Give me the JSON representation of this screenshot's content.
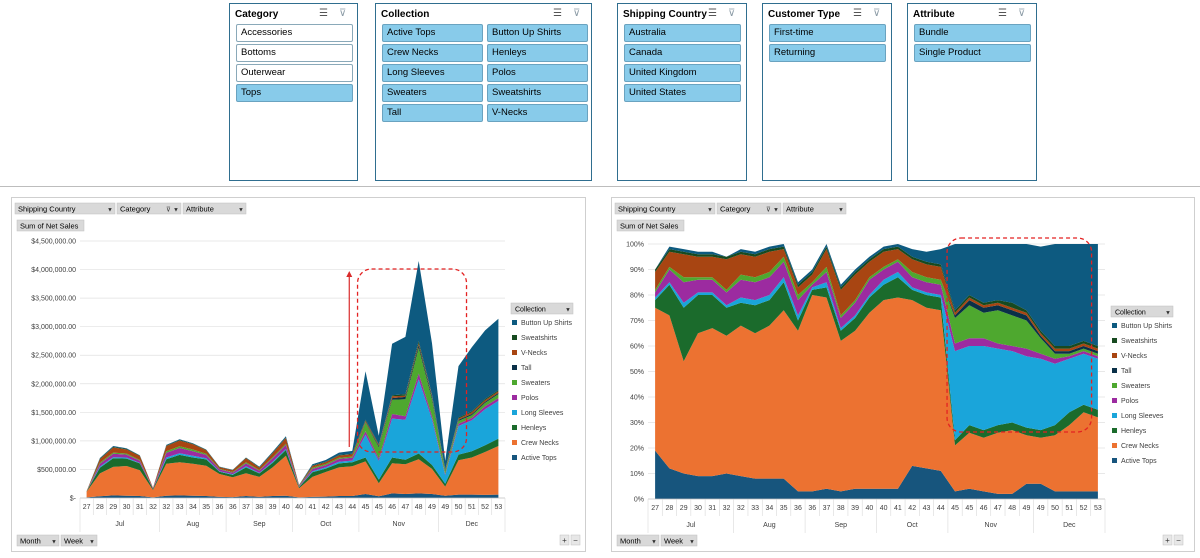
{
  "slicers": [
    {
      "title": "Category",
      "items": [
        {
          "label": "Accessories",
          "selected": false
        },
        {
          "label": "Bottoms",
          "selected": false
        },
        {
          "label": "Outerwear",
          "selected": false
        },
        {
          "label": "Tops",
          "selected": true
        }
      ]
    },
    {
      "title": "Collection",
      "items": [
        {
          "label": "Active Tops",
          "selected": true
        },
        {
          "label": "Button Up Shirts",
          "selected": true
        },
        {
          "label": "Crew Necks",
          "selected": true
        },
        {
          "label": "Henleys",
          "selected": true
        },
        {
          "label": "Long Sleeves",
          "selected": true
        },
        {
          "label": "Polos",
          "selected": true
        },
        {
          "label": "Sweaters",
          "selected": true
        },
        {
          "label": "Sweatshirts",
          "selected": true
        },
        {
          "label": "Tall",
          "selected": true
        },
        {
          "label": "V-Necks",
          "selected": true
        }
      ]
    },
    {
      "title": "Shipping Country",
      "items": [
        {
          "label": "Australia",
          "selected": true
        },
        {
          "label": "Canada",
          "selected": true
        },
        {
          "label": "United Kingdom",
          "selected": true
        },
        {
          "label": "United States",
          "selected": true
        }
      ]
    },
    {
      "title": "Customer Type",
      "items": [
        {
          "label": "First-time",
          "selected": true
        },
        {
          "label": "Returning",
          "selected": true
        }
      ]
    },
    {
      "title": "Attribute",
      "items": [
        {
          "label": "Bundle",
          "selected": true
        },
        {
          "label": "Single Product",
          "selected": true
        }
      ]
    }
  ],
  "pivot": {
    "filters": [
      "Shipping Country",
      "Category",
      "Attribute"
    ],
    "value_field": "Sum of Net Sales",
    "legend_title": "Collection",
    "row_buttons": [
      "Month",
      "Week"
    ],
    "zoom_in": "+",
    "zoom_out": "−"
  },
  "colors": {
    "Active Tops": "#17557d",
    "Crew Necks": "#ec7231",
    "Henleys": "#1b6b2c",
    "Long Sleeves": "#1aa5da",
    "Polos": "#9c2ba0",
    "Sweaters": "#4ea82f",
    "Tall": "#0a3048",
    "V-Necks": "#a84512",
    "Sweatshirts": "#174a20",
    "Button Up Shirts": "#0d5a80"
  },
  "chart_data": [
    {
      "type": "area",
      "stacked": true,
      "title": "",
      "ylabel": "Sum of Net Sales",
      "ylim": [
        0,
        4500000
      ],
      "yticks": [
        0,
        500000,
        1000000,
        1500000,
        2000000,
        2500000,
        3000000,
        3500000,
        4000000,
        4500000
      ],
      "ytick_labels": [
        "$-",
        "$500,000.00",
        "$1,000,000.00",
        "$1,500,000.00",
        "$2,000,000.00",
        "$2,500,000.00",
        "$3,000,000.00",
        "$3,500,000.00",
        "$4,000,000.00",
        "$4,500,000.00"
      ],
      "x": [
        "27",
        "28",
        "29",
        "30",
        "31",
        "32",
        "32",
        "33",
        "34",
        "35",
        "36",
        "36",
        "37",
        "38",
        "39",
        "40",
        "40",
        "41",
        "42",
        "43",
        "44",
        "45",
        "45",
        "46",
        "47",
        "48",
        "49",
        "49",
        "50",
        "51",
        "52",
        "53"
      ],
      "months": [
        {
          "label": "Jul",
          "span": 6
        },
        {
          "label": "Aug",
          "span": 5
        },
        {
          "label": "Sep",
          "span": 5
        },
        {
          "label": "Oct",
          "span": 5
        },
        {
          "label": "Nov",
          "span": 6
        },
        {
          "label": "Dec",
          "span": 5
        }
      ],
      "legend": [
        "Button Up Shirts",
        "Sweatshirts",
        "V-Necks",
        "Tall",
        "Sweaters",
        "Polos",
        "Long Sleeves",
        "Henleys",
        "Crew Necks",
        "Active Tops"
      ],
      "series": [
        {
          "name": "Active Tops",
          "values": [
            10000,
            30000,
            45000,
            40000,
            35000,
            10000,
            40000,
            45000,
            40000,
            35000,
            20000,
            15000,
            35000,
            20000,
            35000,
            40000,
            10000,
            20000,
            25000,
            35000,
            35000,
            70000,
            30000,
            80000,
            70000,
            80000,
            70000,
            40000,
            60000,
            60000,
            55000,
            60000
          ]
        },
        {
          "name": "Crew Necks",
          "values": [
            100000,
            400000,
            500000,
            520000,
            450000,
            130000,
            560000,
            580000,
            560000,
            530000,
            400000,
            350000,
            400000,
            350000,
            500000,
            700000,
            160000,
            350000,
            430000,
            500000,
            520000,
            570000,
            230000,
            530000,
            520000,
            600000,
            440000,
            160000,
            600000,
            650000,
            750000,
            850000
          ]
        },
        {
          "name": "Henleys",
          "values": [
            5000,
            100000,
            150000,
            130000,
            120000,
            20000,
            80000,
            130000,
            110000,
            110000,
            40000,
            40000,
            100000,
            60000,
            80000,
            100000,
            20000,
            80000,
            60000,
            70000,
            70000,
            70000,
            60000,
            100000,
            80000,
            100000,
            70000,
            50000,
            100000,
            110000,
            120000,
            130000
          ]
        },
        {
          "name": "Long Sleeves",
          "values": [
            0,
            20000,
            20000,
            20000,
            10000,
            0,
            30000,
            30000,
            30000,
            20000,
            10000,
            10000,
            20000,
            10000,
            20000,
            20000,
            5000,
            20000,
            20000,
            30000,
            30000,
            400000,
            330000,
            680000,
            700000,
            1300000,
            800000,
            150000,
            500000,
            540000,
            630000,
            660000
          ]
        },
        {
          "name": "Polos",
          "values": [
            0,
            50000,
            60000,
            50000,
            40000,
            10000,
            80000,
            90000,
            80000,
            60000,
            30000,
            30000,
            50000,
            40000,
            60000,
            70000,
            10000,
            40000,
            40000,
            50000,
            50000,
            60000,
            40000,
            80000,
            60000,
            100000,
            50000,
            20000,
            40000,
            40000,
            50000,
            50000
          ]
        },
        {
          "name": "Sweaters",
          "values": [
            0,
            20000,
            20000,
            20000,
            10000,
            0,
            30000,
            30000,
            30000,
            20000,
            10000,
            10000,
            20000,
            10000,
            20000,
            20000,
            5000,
            20000,
            20000,
            20000,
            20000,
            150000,
            200000,
            250000,
            300000,
            450000,
            300000,
            50000,
            50000,
            50000,
            60000,
            70000
          ]
        },
        {
          "name": "Tall",
          "values": [
            0,
            0,
            0,
            0,
            0,
            0,
            0,
            0,
            0,
            0,
            0,
            0,
            0,
            0,
            0,
            0,
            0,
            0,
            0,
            0,
            0,
            10000,
            20000,
            30000,
            40000,
            50000,
            40000,
            10000,
            20000,
            20000,
            20000,
            20000
          ]
        },
        {
          "name": "V-Necks",
          "values": [
            5000,
            60000,
            90000,
            70000,
            70000,
            10000,
            90000,
            100000,
            90000,
            60000,
            30000,
            30000,
            70000,
            40000,
            70000,
            100000,
            10000,
            30000,
            30000,
            40000,
            40000,
            20000,
            20000,
            30000,
            20000,
            30000,
            20000,
            10000,
            20000,
            30000,
            30000,
            30000
          ]
        },
        {
          "name": "Sweatshirts",
          "values": [
            0,
            10000,
            10000,
            10000,
            10000,
            0,
            10000,
            10000,
            10000,
            10000,
            5000,
            5000,
            10000,
            10000,
            10000,
            10000,
            5000,
            10000,
            10000,
            10000,
            10000,
            20000,
            10000,
            20000,
            30000,
            40000,
            20000,
            10000,
            20000,
            20000,
            20000,
            20000
          ]
        },
        {
          "name": "Button Up Shirts",
          "values": [
            0,
            10000,
            15000,
            10000,
            5000,
            0,
            10000,
            15000,
            10000,
            5000,
            5000,
            5000,
            5000,
            10000,
            15000,
            20000,
            5000,
            20000,
            30000,
            40000,
            50000,
            850000,
            150000,
            900000,
            1000000,
            1400000,
            900000,
            150000,
            900000,
            1120000,
            1200000,
            1250000
          ]
        }
      ]
    },
    {
      "type": "area",
      "stacked": true,
      "percent": true,
      "title": "",
      "ylabel": "Sum of Net Sales",
      "ylim": [
        0,
        100
      ],
      "yticks": [
        0,
        10,
        20,
        30,
        40,
        50,
        60,
        70,
        80,
        90,
        100
      ],
      "ytick_labels": [
        "0%",
        "10%",
        "20%",
        "30%",
        "40%",
        "50%",
        "60%",
        "70%",
        "80%",
        "90%",
        "100%"
      ],
      "x": [
        "27",
        "28",
        "29",
        "30",
        "31",
        "32",
        "32",
        "33",
        "34",
        "35",
        "36",
        "36",
        "37",
        "38",
        "39",
        "40",
        "40",
        "41",
        "42",
        "43",
        "44",
        "45",
        "45",
        "46",
        "47",
        "48",
        "49",
        "49",
        "50",
        "51",
        "52",
        "53"
      ],
      "months": [
        {
          "label": "Jul",
          "span": 6
        },
        {
          "label": "Aug",
          "span": 5
        },
        {
          "label": "Sep",
          "span": 5
        },
        {
          "label": "Oct",
          "span": 5
        },
        {
          "label": "Nov",
          "span": 6
        },
        {
          "label": "Dec",
          "span": 5
        }
      ],
      "legend": [
        "Button Up Shirts",
        "Sweatshirts",
        "V-Necks",
        "Tall",
        "Sweaters",
        "Polos",
        "Long Sleeves",
        "Henleys",
        "Crew Necks",
        "Active Tops"
      ],
      "series": [
        {
          "name": "Active Tops",
          "values": [
            19,
            12,
            10,
            9,
            9,
            10,
            9,
            8,
            8,
            8,
            3,
            3,
            4,
            3,
            4,
            4,
            4,
            4,
            13,
            12,
            11,
            3,
            4,
            3,
            2,
            2,
            6,
            6,
            3,
            3,
            3,
            3
          ]
        },
        {
          "name": "Crew Necks",
          "values": [
            56,
            60,
            44,
            56,
            58,
            54,
            59,
            57,
            60,
            66,
            63,
            77,
            75,
            59,
            62,
            69,
            74,
            75,
            65,
            63,
            63,
            18,
            22,
            21,
            24,
            25,
            19,
            18,
            22,
            26,
            31,
            29
          ]
        },
        {
          "name": "Henleys",
          "values": [
            3,
            12,
            21,
            15,
            13,
            11,
            9,
            11,
            10,
            11,
            4,
            2,
            4,
            4,
            5,
            6,
            6,
            8,
            4,
            5,
            5,
            2,
            3,
            3,
            3,
            3,
            3,
            3,
            4,
            5,
            3,
            3
          ]
        },
        {
          "name": "Long Sleeves",
          "values": [
            1,
            1,
            2,
            1,
            1,
            1,
            2,
            2,
            2,
            2,
            2,
            1,
            2,
            1,
            1,
            1,
            2,
            2,
            1,
            1,
            1,
            35,
            31,
            33,
            30,
            28,
            28,
            28,
            24,
            21,
            20,
            20
          ]
        },
        {
          "name": "Polos",
          "values": [
            2,
            5,
            8,
            5,
            5,
            5,
            7,
            7,
            7,
            6,
            6,
            1,
            4,
            4,
            5,
            6,
            4,
            4,
            4,
            4,
            4,
            3,
            3,
            3,
            2,
            2,
            3,
            2,
            2,
            1,
            1,
            1
          ]
        },
        {
          "name": "Sweaters",
          "values": [
            1,
            1,
            2,
            1,
            1,
            1,
            2,
            2,
            2,
            2,
            2,
            1,
            2,
            1,
            1,
            1,
            1,
            1,
            2,
            2,
            2,
            10,
            13,
            10,
            13,
            12,
            11,
            6,
            2,
            1,
            1,
            1
          ]
        },
        {
          "name": "Tall",
          "values": [
            0,
            0,
            0,
            0,
            0,
            0,
            0,
            0,
            0,
            0,
            0,
            0,
            0,
            0,
            0,
            0,
            0,
            0,
            0,
            0,
            0,
            1,
            2,
            2,
            2,
            2,
            2,
            1,
            1,
            1,
            1,
            1
          ]
        },
        {
          "name": "V-Necks",
          "values": [
            7,
            6,
            9,
            8,
            8,
            12,
            8,
            8,
            8,
            3,
            3,
            3,
            7,
            10,
            10,
            6,
            6,
            4,
            5,
            5,
            5,
            1,
            1,
            1,
            1,
            1,
            1,
            1,
            1,
            1,
            1,
            1
          ]
        },
        {
          "name": "Sweatshirts",
          "values": [
            1,
            1,
            1,
            1,
            1,
            1,
            1,
            1,
            1,
            1,
            1,
            1,
            1,
            1,
            1,
            1,
            1,
            1,
            1,
            1,
            1,
            1,
            1,
            1,
            1,
            2,
            1,
            1,
            1,
            1,
            1,
            1
          ]
        },
        {
          "name": "Button Up Shirts",
          "values": [
            0,
            1,
            1,
            1,
            1,
            0,
            1,
            1,
            1,
            1,
            1,
            1,
            1,
            1,
            1,
            1,
            1,
            1,
            3,
            4,
            6,
            26,
            20,
            23,
            22,
            23,
            26,
            33,
            40,
            40,
            38,
            40
          ]
        }
      ]
    }
  ]
}
